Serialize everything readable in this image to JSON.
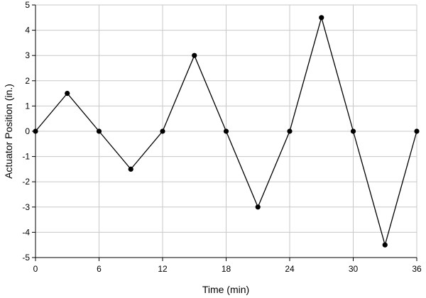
{
  "chart_data": {
    "type": "line",
    "title": "",
    "xlabel": "Time (min)",
    "ylabel": "Actuator Position (in.)",
    "xlim": [
      0,
      36
    ],
    "ylim": [
      -5,
      5
    ],
    "x_ticks": [
      0,
      6,
      12,
      18,
      24,
      30,
      36
    ],
    "y_ticks": [
      -5,
      -4,
      -3,
      -2,
      -1,
      0,
      1,
      2,
      3,
      4,
      5
    ],
    "x_tick_labels": [
      "0",
      "6",
      "12",
      "18",
      "24",
      "30",
      "36"
    ],
    "y_tick_labels": [
      "-5",
      "-4",
      "-3",
      "-2",
      "-1",
      "0",
      "1",
      "2",
      "3",
      "4",
      "5"
    ],
    "grid": true,
    "legend": "none",
    "series": [
      {
        "x": [
          0,
          3,
          6,
          9,
          12,
          15,
          18,
          21,
          24,
          27,
          30,
          33,
          36
        ],
        "y": [
          0,
          1.5,
          0,
          -1.5,
          0,
          3,
          0,
          -3,
          0,
          4.5,
          0,
          -4.5,
          0
        ]
      }
    ],
    "colors": {
      "line": "#000000",
      "marker": "#000000",
      "grid": "#c8c8c8",
      "axis": "#000000"
    }
  }
}
